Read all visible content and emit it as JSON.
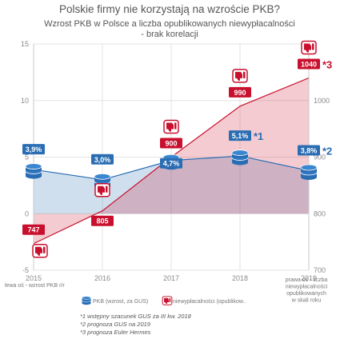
{
  "chart_data": {
    "type": "line",
    "title": "Polskie firmy nie korzystają na wzroście PKB?",
    "subtitle_line1": "Wzrost PKB w Polsce a liczba opublikowanych niewypłacalności",
    "subtitle_line2": "- brak korelacji",
    "categories": [
      "2015",
      "2016",
      "2017",
      "2018",
      "2019"
    ],
    "left_axis": {
      "ticks": [
        "15",
        "10",
        "5",
        "0",
        "-5"
      ],
      "ylim": [
        -5,
        15
      ],
      "label": "lewa oś - wzrost PKB r/r"
    },
    "right_axis": {
      "ticks": [
        "1000",
        "900",
        "800",
        "700"
      ],
      "ylim": [
        700,
        1100
      ],
      "label": [
        "prawa oś - liczba",
        "niewypłacalności",
        "opublikowanych",
        "w skali roku"
      ]
    },
    "series": [
      {
        "name": "PKB (wzrost, za GUS)",
        "axis": "left",
        "color": "#2a6db3",
        "values": [
          3.9,
          3.0,
          4.7,
          5.1,
          3.8
        ],
        "labels": [
          "3,9%",
          "3,0%",
          "4,7%",
          "5,1%",
          "3,8%"
        ],
        "markers": [
          "",
          "",
          "",
          "*1",
          "*2"
        ]
      },
      {
        "name": "niewypłacalności (opublikow..",
        "axis": "right",
        "color": "#c8102e",
        "values": [
          747,
          805,
          900,
          990,
          1040
        ],
        "labels": [
          "747",
          "805",
          "900",
          "990",
          "1040"
        ],
        "markers": [
          "",
          "",
          "",
          "",
          "*3"
        ]
      }
    ],
    "grid": true,
    "legend": "bottom",
    "footnotes": [
      "*1 wstępny szacunek GUS za III kw. 2018",
      "*2 prognoza GUS na 2019",
      "*3 prognoza Euler Hermes"
    ]
  }
}
